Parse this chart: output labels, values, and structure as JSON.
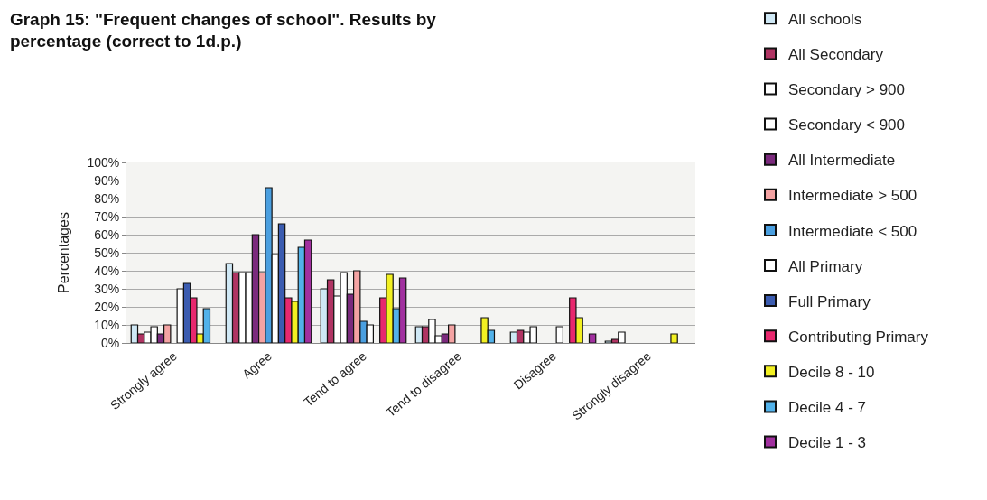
{
  "chart_data": {
    "type": "bar",
    "title": "Graph 15: \"Frequent changes of school\". Results by percentage (correct to 1d.p.)",
    "ylabel": "Percentages",
    "categories": [
      "Strongly agree",
      "Agree",
      "Tend to agree",
      "Tend to disagree",
      "Disagree",
      "Strongly disagree"
    ],
    "series": [
      {
        "name": "All schools",
        "color": "#cfe8f5",
        "values": [
          10,
          44,
          30,
          9,
          6,
          1
        ]
      },
      {
        "name": "All Secondary",
        "color": "#b03463",
        "values": [
          5,
          39,
          35,
          9,
          7,
          2
        ]
      },
      {
        "name": "Secondary > 900",
        "color": "#ffffff",
        "values": [
          6,
          39,
          26,
          13,
          6,
          6
        ]
      },
      {
        "name": "Secondary < 900",
        "color": "#ffffff",
        "values": [
          9,
          39,
          39,
          4,
          9,
          null
        ]
      },
      {
        "name": "All Intermediate",
        "color": "#7b2a7d",
        "values": [
          5,
          60,
          27,
          5,
          null,
          null
        ]
      },
      {
        "name": "Intermediate > 500",
        "color": "#f4a3a3",
        "values": [
          10,
          39,
          40,
          10,
          null,
          null
        ]
      },
      {
        "name": "Intermediate < 500",
        "color": "#4a9fe0",
        "values": [
          null,
          86,
          12,
          null,
          null,
          null
        ]
      },
      {
        "name": "All Primary",
        "color": "#ffffff",
        "values": [
          30,
          49,
          10,
          null,
          9,
          null
        ]
      },
      {
        "name": "Full Primary",
        "color": "#3b5cb0",
        "values": [
          33,
          66,
          null,
          null,
          null,
          null
        ]
      },
      {
        "name": "Contributing Primary",
        "color": "#e8286e",
        "values": [
          25,
          25,
          25,
          null,
          25,
          null
        ]
      },
      {
        "name": "Decile 8 - 10",
        "color": "#f2f022",
        "values": [
          5,
          23,
          38,
          14,
          14,
          5
        ]
      },
      {
        "name": "Decile 4 - 7",
        "color": "#52b2ea",
        "values": [
          19,
          53,
          19,
          7,
          null,
          null
        ]
      },
      {
        "name": "Decile 1 - 3",
        "color": "#a1309f",
        "values": [
          null,
          57,
          36,
          null,
          5,
          null
        ]
      }
    ],
    "ylim": [
      0,
      100
    ],
    "yticks": [
      {
        "value": 0,
        "label": "0%"
      },
      {
        "value": 10,
        "label": "10%"
      },
      {
        "value": 20,
        "label": "20%"
      },
      {
        "value": 30,
        "label": "30%"
      },
      {
        "value": 40,
        "label": "40%"
      },
      {
        "value": 50,
        "label": "50%"
      },
      {
        "value": 60,
        "label": "60%"
      },
      {
        "value": 70,
        "label": "70%"
      },
      {
        "value": 80,
        "label": "80%"
      },
      {
        "value": 90,
        "label": "90%"
      },
      {
        "value": 100,
        "label": "100%"
      }
    ],
    "grid": "y",
    "legend": "right"
  }
}
